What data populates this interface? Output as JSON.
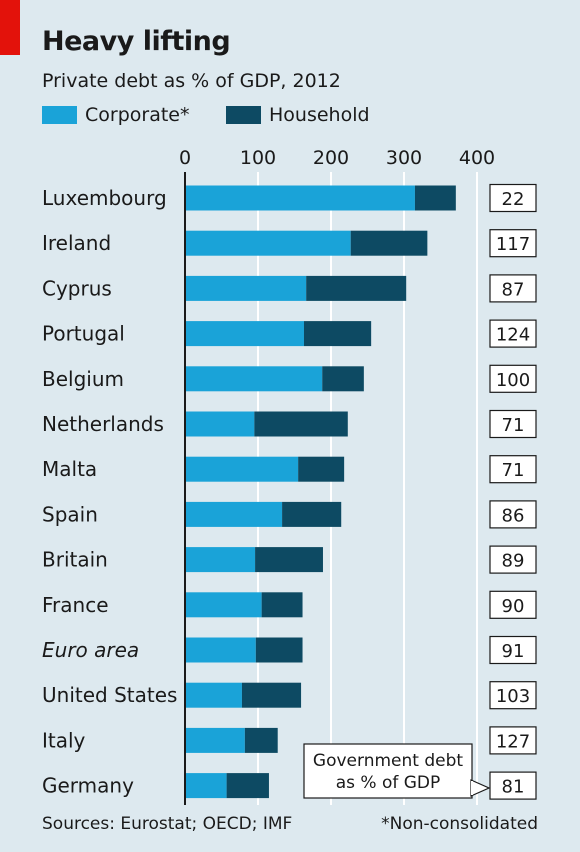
{
  "chart_data": {
    "type": "bar",
    "stacked": true,
    "orientation": "horizontal",
    "title": "Heavy lifting",
    "subtitle": "Private debt as % of GDP, 2012",
    "categories": [
      "Luxembourg",
      "Ireland",
      "Cyprus",
      "Portugal",
      "Belgium",
      "Netherlands",
      "Malta",
      "Spain",
      "Britain",
      "France",
      "Euro area",
      "United States",
      "Italy",
      "Germany"
    ],
    "italic_categories": [
      "Euro area"
    ],
    "series": [
      {
        "name": "Corporate*",
        "color": "#1aa3d8",
        "values": [
          315,
          227,
          166,
          163,
          188,
          95,
          155,
          133,
          96,
          105,
          97,
          78,
          82,
          57
        ]
      },
      {
        "name": "Household",
        "color": "#0d4a63",
        "values": [
          56,
          105,
          137,
          92,
          57,
          128,
          63,
          81,
          93,
          56,
          64,
          81,
          45,
          58
        ]
      }
    ],
    "xlim": [
      0,
      400
    ],
    "xticks": [
      "0",
      "100",
      "200",
      "300",
      "400"
    ],
    "grid": true,
    "side_column": {
      "label_lines": [
        "Government debt",
        "as % of GDP"
      ],
      "values": [
        "22",
        "117",
        "87",
        "124",
        "100",
        "71",
        "71",
        "86",
        "89",
        "90",
        "91",
        "103",
        "127",
        "81"
      ]
    },
    "source": "Sources: Eurostat; OECD; IMF",
    "footnote": "*Non-consolidated"
  }
}
